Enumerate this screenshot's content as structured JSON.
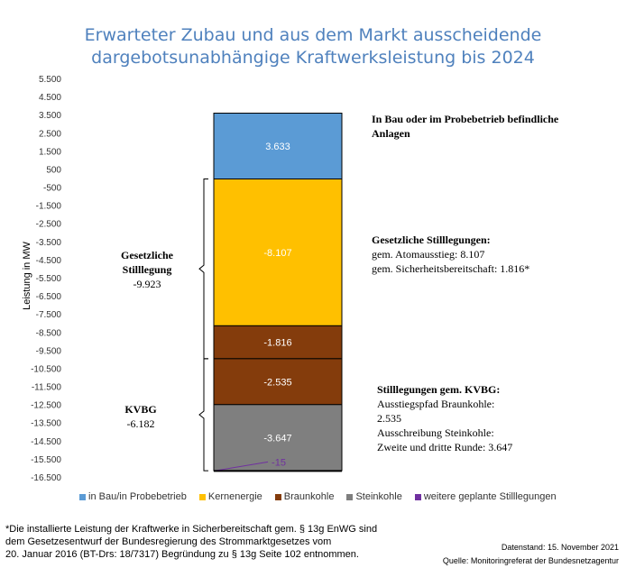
{
  "chart_data": {
    "type": "bar",
    "stacked": true,
    "title": "Erwarteter Zubau und aus dem Markt ausscheidende dargebotsunabhängige Kraftwerksleistung bis 2024",
    "title_lines": [
      "Erwarteter Zubau und aus dem Markt ausscheidende",
      "dargebotsunabhängige  Kraftwerksleistung bis 2024"
    ],
    "ylabel": "Leistung in MW",
    "ylim": [
      -16500,
      5500
    ],
    "yticks": [
      5500,
      4500,
      3500,
      2500,
      1500,
      500,
      -500,
      -1500,
      -2500,
      -3500,
      -4500,
      -5500,
      -6500,
      -7500,
      -8500,
      -9500,
      -10500,
      -11500,
      -12500,
      -13500,
      -14500,
      -15500,
      -16500
    ],
    "ytick_labels": [
      "5.500",
      "4.500",
      "3.500",
      "2.500",
      "1.500",
      "500",
      "-500",
      "-1.500",
      "-2.500",
      "-3.500",
      "-4.500",
      "-5.500",
      "-6.500",
      "-7.500",
      "-8.500",
      "-9.500",
      "-10.500",
      "-11.500",
      "-12.500",
      "-13.500",
      "-14.500",
      "-15.500",
      "-16.500"
    ],
    "series": [
      {
        "name": "in Bau/in Probebetrieb",
        "value": 3633,
        "label": "3.633",
        "color": "#5b9bd5"
      },
      {
        "name": "Kernenergie",
        "value": -8107,
        "label": "-8.107",
        "color": "#ffc000"
      },
      {
        "name": "Braunkohle",
        "value": -1816,
        "label": "-1.816",
        "color": "#843c0c"
      },
      {
        "name": "Braunkohle",
        "value": -2535,
        "label": "-2.535",
        "color": "#843c0c"
      },
      {
        "name": "Steinkohle",
        "value": -3647,
        "label": "-3.647",
        "color": "#7f7f7f"
      },
      {
        "name": "weitere geplante Stilllegungen",
        "value": -15,
        "label": "-15",
        "color": "#7030a0"
      }
    ]
  },
  "legend": [
    {
      "label": "in Bau/in Probebetrieb",
      "color": "#5b9bd5"
    },
    {
      "label": "Kernenergie",
      "color": "#ffc000"
    },
    {
      "label": "Braunkohle",
      "color": "#843c0c"
    },
    {
      "label": "Steinkohle",
      "color": "#7f7f7f"
    },
    {
      "label": "weitere geplante Stilllegungen",
      "color": "#7030a0"
    }
  ],
  "annotations": {
    "bau_line1": "In Bau oder im Probebetrieb  befindliche",
    "bau_line2": "Anlagen",
    "gesetz_head": "Gesetzliche Stilllegungen:",
    "gesetz_l1": "gem. Atomausstieg: 8.107",
    "gesetz_l2": "gem. Sicherheitsbereitschaft:  1.816*",
    "kvbg_head": "Stilllegungen gem. KVBG:",
    "kvbg_l1": "Ausstiegspfad Braunkohle:",
    "kvbg_l2": "2.535",
    "kvbg_l3": "Ausschreibung Steinkohle:",
    "kvbg_l4": "Zweite und  dritte Runde:  3.647"
  },
  "groups": {
    "gesetz_l1": "Gesetzliche",
    "gesetz_l2": "Stilllegung",
    "gesetz_val": "-9.923",
    "kvbg_l1": "KVBG",
    "kvbg_val": "-6.182"
  },
  "footnote": {
    "l1": "*Die installierte Leistung der Kraftwerke in Sicherbereitschaft gem. § 13g EnWG sind",
    "l2": "dem Gesetzesentwurf der Bundesregierung des Strommarktgesetzes vom",
    "l3": "20. Januar 2016 (BT-Drs: 18/7317) Begründung zu § 13g Seite 102 entnommen."
  },
  "meta": {
    "datenstand": "Datenstand: 15. November 2021",
    "quelle": "Quelle: Monitoringreferat der Bundesnetzagentur"
  }
}
